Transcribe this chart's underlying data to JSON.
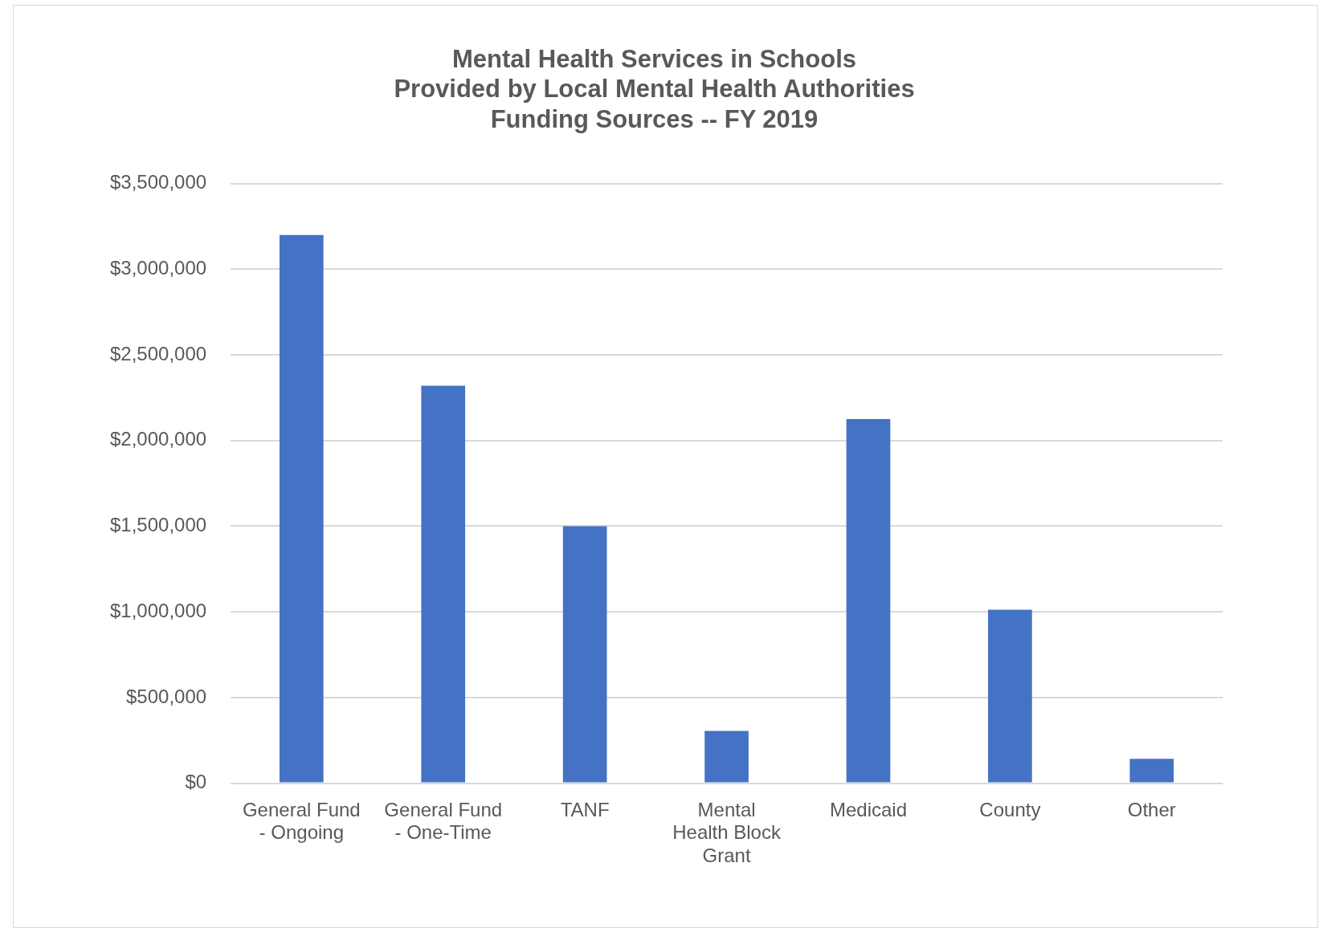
{
  "chart_data": {
    "type": "bar",
    "title": "Mental Health Services in Schools\nProvided by Local Mental Health Authorities\nFunding Sources -- FY 2019",
    "categories": [
      "General Fund - Ongoing",
      "General Fund - One-Time",
      "TANF",
      "Mental Health Block Grant",
      "Medicaid",
      "County",
      "Other"
    ],
    "values": [
      3200000,
      2320000,
      1500000,
      305000,
      2125000,
      1013000,
      142000
    ],
    "color": "#4472c4",
    "ylim": [
      0,
      3500000
    ],
    "yticks": [
      {
        "value": 0,
        "label": "$0"
      },
      {
        "value": 500000,
        "label": "$500,000"
      },
      {
        "value": 1000000,
        "label": "$1,000,000"
      },
      {
        "value": 1500000,
        "label": "$1,500,000"
      },
      {
        "value": 2000000,
        "label": "$2,000,000"
      },
      {
        "value": 2500000,
        "label": "$2,500,000"
      },
      {
        "value": 3000000,
        "label": "$3,000,000"
      },
      {
        "value": 3500000,
        "label": "$3,500,000"
      }
    ],
    "grid": "y"
  }
}
